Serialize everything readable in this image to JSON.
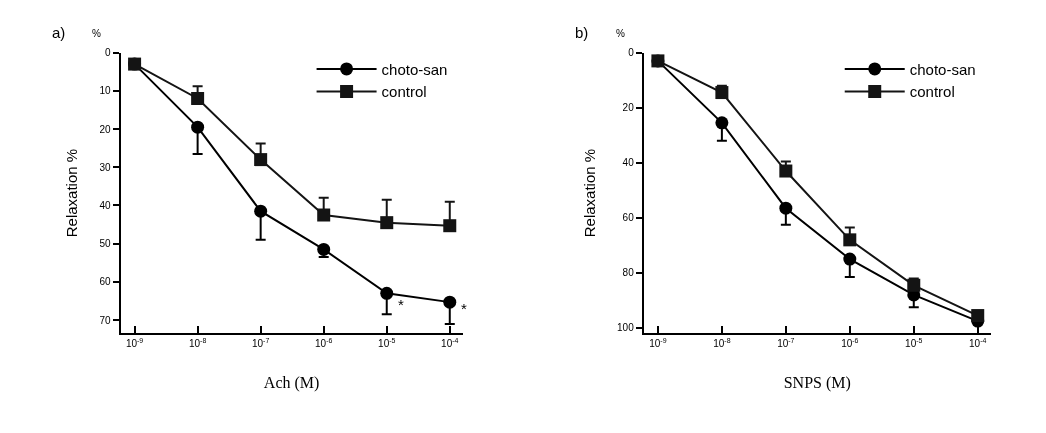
{
  "chart_data": [
    {
      "type": "line",
      "title": "a)",
      "xlabel": "Ach (M)",
      "ylabel": "Relaxation %",
      "annotations": [
        "%",
        {
          "text": "*",
          "x": 1e-05,
          "y": 66
        },
        {
          "text": "*",
          "x": 0.0001,
          "y": 67
        }
      ],
      "x": [
        1e-09,
        1e-08,
        1e-07,
        1e-06,
        1e-05,
        0.0001
      ],
      "log": "x",
      "xlim": [
        6e-10,
        0.00016
      ],
      "xticks": [
        {
          "value": 1e-09,
          "label": "10$^{-9}$"
        },
        {
          "value": 1e-08,
          "label": "10$^{-8}$"
        },
        {
          "value": 1e-07,
          "label": "10$^{-7}$"
        },
        {
          "value": 1e-06,
          "label": "10$^{-6}$"
        },
        {
          "value": 1e-05,
          "label": "10$^{-5}$"
        },
        {
          "value": 0.0001,
          "label": "10$^{-4}$"
        }
      ],
      "ylim": [
        73.5,
        0
      ],
      "yticks": [
        0,
        10,
        20,
        30,
        40,
        50,
        60,
        70
      ],
      "legend": "top right",
      "line_style": "solid",
      "series": [
        {
          "name": "choto-san",
          "color": "#000000",
          "marker": "circle",
          "values": [
            3,
            19.5,
            41.5,
            51.5,
            63,
            65.3
          ],
          "errors": [
            null,
            [
              19.5,
              26.5
            ],
            [
              41.5,
              49
            ],
            [
              51.5,
              53.5
            ],
            [
              63,
              68.5
            ],
            [
              65.3,
              71
            ]
          ]
        },
        {
          "name": "control",
          "color": "#141414",
          "marker": "square",
          "values": [
            3,
            12,
            28,
            42.5,
            44.5,
            45.3
          ],
          "errors": [
            null,
            [
              8.8,
              12
            ],
            [
              23.8,
              28
            ],
            [
              38,
              42.5
            ],
            [
              38.5,
              44.5
            ],
            [
              39,
              45.3
            ]
          ]
        }
      ]
    },
    {
      "type": "line",
      "title": "b)",
      "xlabel": "SNPS (M)",
      "ylabel": "Relaxation %",
      "annotations": [
        "%"
      ],
      "x": [
        1e-09,
        1e-08,
        1e-07,
        1e-06,
        1e-05,
        0.0001
      ],
      "log": "x",
      "xlim": [
        6e-10,
        0.00016
      ],
      "xticks": [
        {
          "value": 1e-09,
          "label": "10$^{-9}$"
        },
        {
          "value": 1e-08,
          "label": "10$^{-8}$"
        },
        {
          "value": 1e-07,
          "label": "10$^{-7}$"
        },
        {
          "value": 1e-06,
          "label": "10$^{-6}$"
        },
        {
          "value": 1e-05,
          "label": "10$^{-5}$"
        },
        {
          "value": 0.0001,
          "label": "10$^{-4}$"
        }
      ],
      "ylim": [
        102,
        0
      ],
      "yticks": [
        0,
        20,
        40,
        60,
        80,
        100
      ],
      "legend": "top right",
      "line_style": "solid",
      "series": [
        {
          "name": "choto-san",
          "color": "#000000",
          "marker": "circle",
          "values": [
            3,
            25.5,
            56.5,
            75,
            88,
            97.5
          ],
          "errors": [
            null,
            [
              25.5,
              32
            ],
            [
              56.5,
              62.5
            ],
            [
              75,
              81.5
            ],
            [
              88,
              92.5
            ],
            null
          ]
        },
        {
          "name": "control",
          "color": "#141414",
          "marker": "square",
          "values": [
            3,
            14.5,
            43,
            68,
            84.5,
            95.5
          ],
          "errors": [
            null,
            [
              12,
              14.5
            ],
            [
              39.5,
              43
            ],
            [
              63.5,
              68
            ],
            [
              82,
              84.5
            ],
            null
          ]
        }
      ]
    }
  ]
}
